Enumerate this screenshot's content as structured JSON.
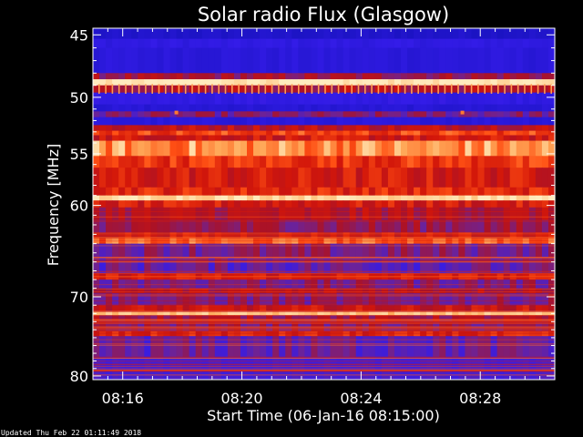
{
  "page": {
    "background": "#000000",
    "updated_text": "Updated Thu Feb 22 01:11:49 2018"
  },
  "chart_data": {
    "type": "heatmap",
    "title": "Solar radio Flux (Glasgow)",
    "xlabel": "Start Time (06-Jan-16 08:15:00)",
    "ylabel": "Frequency [MHz]",
    "x_unit": "minutes",
    "xlim": [
      15.0,
      30.5
    ],
    "ylim": [
      44.5,
      80.5
    ],
    "y_scale": "log",
    "x_ticks": [
      {
        "value": 16,
        "label": "08:16"
      },
      {
        "value": 20,
        "label": "08:20"
      },
      {
        "value": 24,
        "label": "08:24"
      },
      {
        "value": 28,
        "label": "08:28"
      }
    ],
    "y_ticks": [
      {
        "value": 45,
        "label": "45"
      },
      {
        "value": 50,
        "label": "50"
      },
      {
        "value": 55,
        "label": "55"
      },
      {
        "value": 60,
        "label": "60"
      },
      {
        "value": 70,
        "label": "70"
      },
      {
        "value": 80,
        "label": "80"
      }
    ],
    "y_minor_ticks": [
      46,
      47,
      48,
      49,
      51,
      52,
      53,
      54,
      56,
      57,
      58,
      59,
      61,
      62,
      63,
      64,
      65,
      66,
      67,
      68,
      69,
      71,
      72,
      73,
      74,
      75,
      76,
      77,
      78,
      79
    ],
    "x_minor_ticks": [
      15.5,
      16.5,
      17,
      17.5,
      18,
      18.5,
      19,
      19.5,
      20.5,
      21,
      21.5,
      22,
      22.5,
      23,
      23.5,
      24.5,
      25,
      25.5,
      26,
      26.5,
      27,
      27.5,
      28.5,
      29,
      29.5,
      30
    ],
    "colors": {
      "low": "#2a1dd8",
      "mid_low": "#6a2a9a",
      "mid": "#c81a0e",
      "high": "#ff5a1a",
      "peak": "#ffe6a8",
      "axis": "#ffffff"
    },
    "bands": [
      {
        "from": 44.5,
        "to": 45.3,
        "level": 0.05
      },
      {
        "from": 45.3,
        "to": 46.0,
        "level": 0.15
      },
      {
        "from": 46.0,
        "to": 48.0,
        "level": 0.12
      },
      {
        "from": 48.0,
        "to": 48.5,
        "level": 0.45
      },
      {
        "from": 48.5,
        "to": 49.0,
        "level": 1.0
      },
      {
        "from": 49.0,
        "to": 49.6,
        "level": 0.5
      },
      {
        "from": 49.6,
        "to": 50.6,
        "level": 0.16
      },
      {
        "from": 50.6,
        "to": 51.2,
        "level": 0.1
      },
      {
        "from": 51.2,
        "to": 51.7,
        "level": 0.35
      },
      {
        "from": 51.7,
        "to": 52.4,
        "level": 0.12
      },
      {
        "from": 52.4,
        "to": 52.9,
        "level": 0.55
      },
      {
        "from": 52.9,
        "to": 53.3,
        "level": 0.75
      },
      {
        "from": 53.3,
        "to": 53.8,
        "level": 0.6
      },
      {
        "from": 53.8,
        "to": 55.2,
        "level": 0.88
      },
      {
        "from": 55.2,
        "to": 56.3,
        "level": 0.72
      },
      {
        "from": 56.3,
        "to": 58.2,
        "level": 0.62
      },
      {
        "from": 58.2,
        "to": 59.0,
        "level": 0.68
      },
      {
        "from": 59.0,
        "to": 59.5,
        "level": 0.98
      },
      {
        "from": 59.5,
        "to": 60.2,
        "level": 0.62
      },
      {
        "from": 60.2,
        "to": 61.5,
        "level": 0.5
      },
      {
        "from": 61.5,
        "to": 62.8,
        "level": 0.42
      },
      {
        "from": 62.8,
        "to": 63.4,
        "level": 0.6
      },
      {
        "from": 63.4,
        "to": 64.0,
        "level": 0.82
      },
      {
        "from": 64.0,
        "to": 65.5,
        "level": 0.36
      },
      {
        "from": 65.5,
        "to": 67.3,
        "level": 0.3
      },
      {
        "from": 67.3,
        "to": 68.0,
        "level": 0.62
      },
      {
        "from": 68.0,
        "to": 69.0,
        "level": 0.36
      },
      {
        "from": 69.0,
        "to": 69.6,
        "level": 0.52
      },
      {
        "from": 69.6,
        "to": 71.0,
        "level": 0.36
      },
      {
        "from": 71.0,
        "to": 71.7,
        "level": 0.58
      },
      {
        "from": 71.7,
        "to": 72.2,
        "level": 0.95
      },
      {
        "from": 72.2,
        "to": 73.0,
        "level": 0.46
      },
      {
        "from": 73.0,
        "to": 74.2,
        "level": 0.38
      },
      {
        "from": 74.2,
        "to": 74.8,
        "level": 0.66
      },
      {
        "from": 74.8,
        "to": 77.5,
        "level": 0.3
      },
      {
        "from": 77.5,
        "to": 80.5,
        "level": 0.22
      }
    ]
  }
}
